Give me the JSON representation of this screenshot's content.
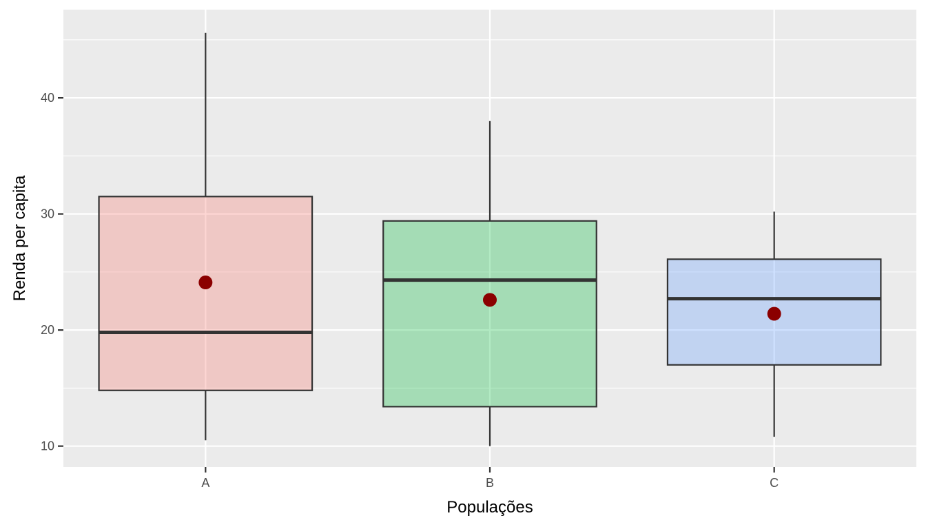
{
  "chart_data": {
    "type": "boxplot",
    "title": "",
    "xlabel": "Populações",
    "ylabel": "Renda per capita",
    "categories": [
      "A",
      "B",
      "C"
    ],
    "ylim": [
      8.2,
      47.6
    ],
    "yticks": [
      10,
      20,
      30,
      40
    ],
    "ytick_labels": [
      "10",
      "20",
      "30",
      "40"
    ],
    "grid": true,
    "legend": "none",
    "boxes": [
      {
        "category": "A",
        "whisker_low": 10.5,
        "q1": 14.8,
        "median": 19.8,
        "q3": 31.5,
        "whisker_high": 45.6,
        "mean": 24.1,
        "fill": "#f8766d"
      },
      {
        "category": "B",
        "whisker_low": 10.0,
        "q1": 13.4,
        "median": 24.3,
        "q3": 29.4,
        "whisker_high": 38.0,
        "mean": 22.6,
        "fill": "#00ba38"
      },
      {
        "category": "C",
        "whisker_low": 10.8,
        "q1": 17.0,
        "median": 22.7,
        "q3": 26.1,
        "whisker_high": 30.2,
        "mean": 21.4,
        "fill": "#619cff"
      }
    ],
    "mean_point_color": "#8b0000",
    "panel_background": "#ebebeb"
  }
}
